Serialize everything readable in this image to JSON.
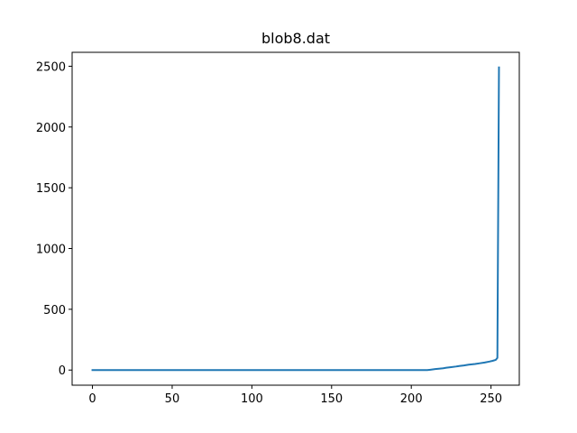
{
  "chart_data": {
    "type": "line",
    "title": "blob8.dat",
    "xlabel": "",
    "ylabel": "",
    "xlim": [
      -12.75,
      267.75
    ],
    "ylim": [
      -124.5,
      2614.5
    ],
    "xticks": [
      0,
      50,
      100,
      150,
      200,
      250
    ],
    "yticks": [
      0,
      500,
      1000,
      1500,
      2000,
      2500
    ],
    "xtick_labels": [
      "0",
      "50",
      "100",
      "150",
      "200",
      "250"
    ],
    "ytick_labels": [
      "0",
      "500",
      "1000",
      "1500",
      "2000",
      "2500"
    ],
    "grid": false,
    "legend": "none",
    "series": [
      {
        "color": "#1f77b4",
        "x": [
          0,
          50,
          100,
          150,
          200,
          210,
          212,
          215,
          218,
          220,
          222,
          225,
          228,
          230,
          233,
          236,
          240,
          243,
          246,
          249,
          251,
          253,
          254,
          255
        ],
        "y": [
          0,
          0,
          0,
          0,
          0,
          0,
          3,
          8,
          12,
          15,
          19,
          24,
          29,
          33,
          38,
          44,
          50,
          56,
          62,
          70,
          76,
          84,
          100,
          2490
        ]
      }
    ]
  }
}
